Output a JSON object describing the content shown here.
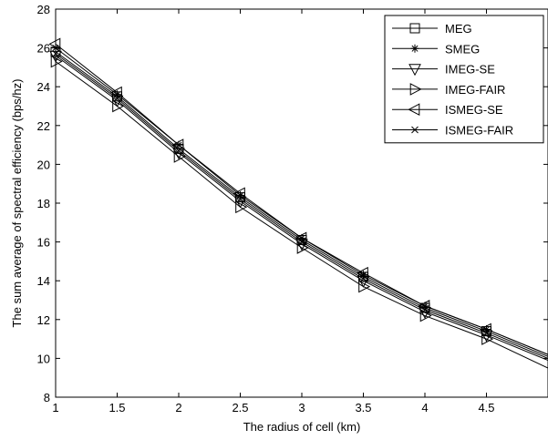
{
  "chart_data": {
    "type": "line",
    "xlabel": "The radius of cell (km)",
    "ylabel": "The sum average of spectral efficiency (bps/hz)",
    "xlim": [
      1,
      5
    ],
    "ylim": [
      8,
      28
    ],
    "xticks": [
      1,
      1.5,
      2,
      2.5,
      3,
      3.5,
      4,
      4.5
    ],
    "yticks": [
      8,
      10,
      12,
      14,
      16,
      18,
      20,
      22,
      24,
      26,
      28
    ],
    "grid": false,
    "legend_position": "top-right",
    "x": [
      1,
      1.5,
      2,
      2.5,
      3,
      3.5,
      4,
      4.5,
      5
    ],
    "series": [
      {
        "name": "MEG",
        "marker": "square",
        "values": [
          25.8,
          23.5,
          20.8,
          18.3,
          16.1,
          14.2,
          12.6,
          11.4,
          10.1
        ]
      },
      {
        "name": "SMEG",
        "marker": "asterisk",
        "values": [
          26.0,
          23.6,
          21.0,
          18.4,
          16.2,
          14.3,
          12.7,
          11.5,
          10.2
        ]
      },
      {
        "name": "IMEG-SE",
        "marker": "triangle-down",
        "values": [
          25.6,
          23.3,
          20.6,
          18.1,
          15.9,
          14.0,
          12.4,
          11.2,
          9.9
        ]
      },
      {
        "name": "IMEG-FAIR",
        "marker": "triangle-right",
        "values": [
          25.3,
          23.0,
          20.4,
          17.8,
          15.7,
          13.7,
          12.2,
          11.0,
          9.5
        ]
      },
      {
        "name": "ISMEG-SE",
        "marker": "triangle-left",
        "values": [
          26.2,
          23.7,
          21.0,
          18.5,
          16.2,
          14.4,
          12.7,
          11.5,
          10.2
        ]
      },
      {
        "name": "ISMEG-FAIR",
        "marker": "x",
        "values": [
          25.7,
          23.4,
          20.7,
          18.2,
          16.0,
          14.1,
          12.5,
          11.3,
          10.0
        ]
      }
    ]
  }
}
